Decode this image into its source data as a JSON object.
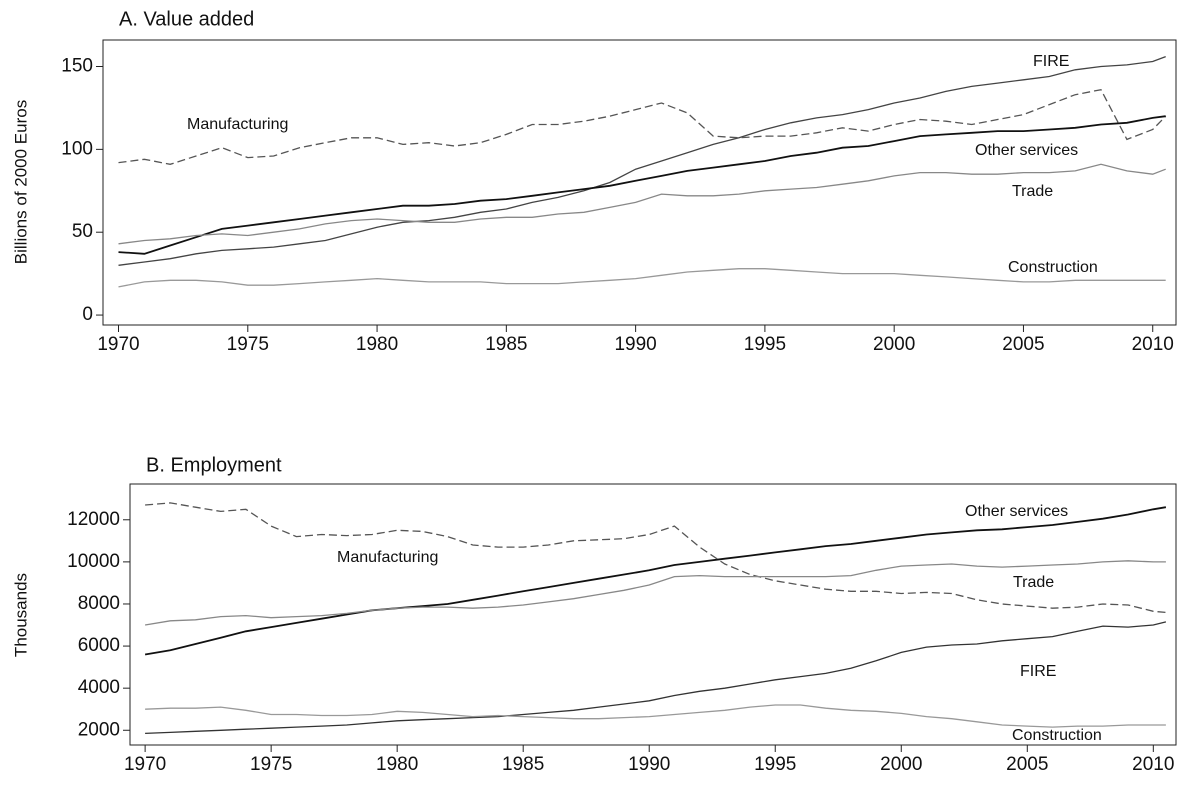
{
  "chart_data": [
    {
      "type": "line",
      "title": "A. Value added",
      "y_label": "Billions of 2000 Euros",
      "x": [
        1970,
        1971,
        1972,
        1973,
        1974,
        1975,
        1976,
        1977,
        1978,
        1979,
        1980,
        1981,
        1982,
        1983,
        1984,
        1985,
        1986,
        1987,
        1988,
        1989,
        1990,
        1991,
        1992,
        1993,
        1994,
        1995,
        1996,
        1997,
        1998,
        1999,
        2000,
        2001,
        2002,
        2003,
        2004,
        2005,
        2006,
        2007,
        2008,
        2009,
        2010,
        2010.5
      ],
      "xlim": [
        1969.4,
        2010.9
      ],
      "xticks": [
        1970,
        1975,
        1980,
        1985,
        1990,
        1995,
        2000,
        2005,
        2010
      ],
      "ylim": [
        -6,
        166
      ],
      "yticks": [
        0,
        50,
        100,
        150
      ],
      "series": [
        {
          "name": "FIRE",
          "color": "#444444",
          "style": "solid",
          "values": [
            30,
            32,
            34,
            37,
            39,
            40,
            41,
            43,
            45,
            49,
            53,
            56,
            57,
            59,
            62,
            64,
            68,
            71,
            75,
            80,
            88,
            93,
            98,
            103,
            107,
            112,
            116,
            119,
            121,
            124,
            128,
            131,
            135,
            138,
            140,
            142,
            144,
            148,
            150,
            151,
            153,
            156
          ]
        },
        {
          "name": "Manufacturing",
          "color": "#555555",
          "style": "dashed",
          "values": [
            92,
            94,
            91,
            96,
            101,
            95,
            96,
            101,
            104,
            107,
            107,
            103,
            104,
            102,
            104,
            109,
            115,
            115,
            117,
            120,
            124,
            128,
            122,
            108,
            107,
            108,
            108,
            110,
            113,
            111,
            115,
            118,
            117,
            115,
            118,
            121,
            127,
            133,
            136,
            106,
            112,
            120
          ]
        },
        {
          "name": "Other services",
          "color": "#111111",
          "style": "solid",
          "values": [
            38,
            37,
            42,
            47,
            52,
            54,
            56,
            58,
            60,
            62,
            64,
            66,
            66,
            67,
            69,
            70,
            72,
            74,
            76,
            78,
            81,
            84,
            87,
            89,
            91,
            93,
            96,
            98,
            101,
            102,
            105,
            108,
            109,
            110,
            111,
            111,
            112,
            113,
            115,
            116,
            119,
            120
          ]
        },
        {
          "name": "Trade",
          "color": "#888888",
          "style": "solid",
          "values": [
            43,
            45,
            46,
            48,
            49,
            48,
            50,
            52,
            55,
            57,
            58,
            57,
            56,
            56,
            58,
            59,
            59,
            61,
            62,
            65,
            68,
            73,
            72,
            72,
            73,
            75,
            76,
            77,
            79,
            81,
            84,
            86,
            86,
            85,
            85,
            86,
            86,
            87,
            91,
            87,
            85,
            88
          ]
        },
        {
          "name": "Construction",
          "color": "#999999",
          "style": "solid",
          "values": [
            17,
            20,
            21,
            21,
            20,
            18,
            18,
            19,
            20,
            21,
            22,
            21,
            20,
            20,
            20,
            19,
            19,
            19,
            20,
            21,
            22,
            24,
            26,
            27,
            28,
            28,
            27,
            26,
            25,
            25,
            25,
            24,
            23,
            22,
            21,
            20,
            20,
            21,
            21,
            21,
            21,
            21
          ]
        }
      ]
    },
    {
      "type": "line",
      "title": "B. Employment",
      "y_label": "Thousands",
      "x": [
        1970,
        1971,
        1972,
        1973,
        1974,
        1975,
        1976,
        1977,
        1978,
        1979,
        1980,
        1981,
        1982,
        1983,
        1984,
        1985,
        1986,
        1987,
        1988,
        1989,
        1990,
        1991,
        1992,
        1993,
        1994,
        1995,
        1996,
        1997,
        1998,
        1999,
        2000,
        2001,
        2002,
        2003,
        2004,
        2005,
        2006,
        2007,
        2008,
        2009,
        2010,
        2010.5
      ],
      "xlim": [
        1969.4,
        2010.9
      ],
      "xticks": [
        1970,
        1975,
        1980,
        1985,
        1990,
        1995,
        2000,
        2005,
        2010
      ],
      "ylim": [
        1300,
        13700
      ],
      "yticks": [
        2000,
        4000,
        6000,
        8000,
        10000,
        12000
      ],
      "series": [
        {
          "name": "Other services",
          "color": "#111111",
          "style": "solid",
          "values": [
            5600,
            5800,
            6100,
            6400,
            6700,
            6900,
            7100,
            7300,
            7500,
            7700,
            7800,
            7900,
            8000,
            8200,
            8400,
            8600,
            8800,
            9000,
            9200,
            9400,
            9600,
            9850,
            10000,
            10150,
            10300,
            10450,
            10600,
            10750,
            10850,
            11000,
            11150,
            11300,
            11400,
            11500,
            11550,
            11650,
            11750,
            11900,
            12050,
            12250,
            12500,
            12600
          ]
        },
        {
          "name": "Manufacturing",
          "color": "#555555",
          "style": "dashed",
          "values": [
            12700,
            12800,
            12600,
            12400,
            12500,
            11700,
            11200,
            11300,
            11250,
            11300,
            11500,
            11450,
            11200,
            10800,
            10700,
            10700,
            10800,
            11000,
            11050,
            11100,
            11300,
            11700,
            10700,
            9900,
            9400,
            9100,
            8900,
            8700,
            8600,
            8600,
            8500,
            8550,
            8500,
            8200,
            8000,
            7900,
            7800,
            7850,
            8000,
            7950,
            7650,
            7600
          ]
        },
        {
          "name": "Trade",
          "color": "#888888",
          "style": "solid",
          "values": [
            7000,
            7200,
            7250,
            7400,
            7450,
            7350,
            7400,
            7450,
            7550,
            7700,
            7800,
            7850,
            7850,
            7800,
            7850,
            7950,
            8100,
            8250,
            8450,
            8650,
            8900,
            9300,
            9350,
            9300,
            9300,
            9300,
            9300,
            9300,
            9350,
            9600,
            9800,
            9850,
            9900,
            9800,
            9750,
            9800,
            9850,
            9900,
            10000,
            10050,
            10000,
            10000
          ]
        },
        {
          "name": "FIRE",
          "color": "#333333",
          "style": "solid",
          "values": [
            1850,
            1900,
            1950,
            2000,
            2050,
            2100,
            2150,
            2200,
            2250,
            2350,
            2450,
            2500,
            2550,
            2600,
            2650,
            2750,
            2850,
            2950,
            3100,
            3250,
            3400,
            3650,
            3850,
            4000,
            4200,
            4400,
            4550,
            4700,
            4950,
            5300,
            5700,
            5950,
            6050,
            6100,
            6250,
            6350,
            6450,
            6700,
            6950,
            6900,
            7000,
            7150
          ]
        },
        {
          "name": "Construction",
          "color": "#999999",
          "style": "solid",
          "values": [
            3000,
            3050,
            3050,
            3100,
            2950,
            2750,
            2750,
            2700,
            2700,
            2750,
            2900,
            2850,
            2750,
            2650,
            2700,
            2650,
            2600,
            2550,
            2550,
            2600,
            2650,
            2750,
            2850,
            2950,
            3100,
            3200,
            3200,
            3050,
            2950,
            2900,
            2800,
            2650,
            2550,
            2400,
            2250,
            2200,
            2150,
            2200,
            2200,
            2250,
            2250,
            2250
          ]
        }
      ]
    }
  ]
}
